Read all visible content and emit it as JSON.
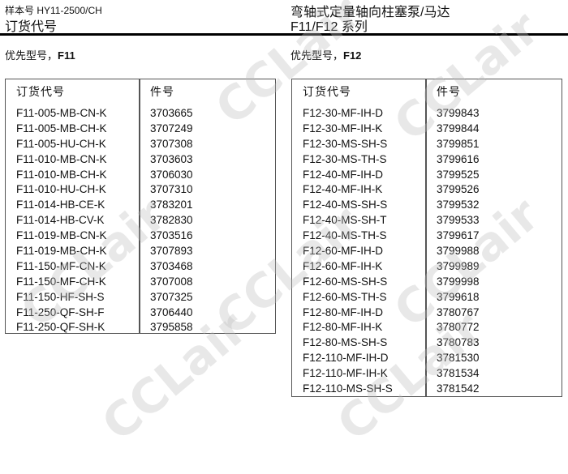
{
  "header": {
    "catalog_no": "样本号 HY11-2500/CH",
    "section": "订货代号",
    "title": "弯轴式定量轴向柱塞泵/马达",
    "series": "F11/F12 系列"
  },
  "watermark": "CCLair",
  "tables": [
    {
      "preferred_label": "优先型号，",
      "preferred_model": "F11",
      "columns": [
        "订货代号",
        "件号"
      ],
      "rows": [
        [
          "F11-005-MB-CN-K",
          "3703665"
        ],
        [
          "F11-005-MB-CH-K",
          "3707249"
        ],
        [
          "F11-005-HU-CH-K",
          "3707308"
        ],
        [
          "F11-010-MB-CN-K",
          "3703603"
        ],
        [
          "F11-010-MB-CH-K",
          "3706030"
        ],
        [
          "F11-010-HU-CH-K",
          "3707310"
        ],
        [
          "F11-014-HB-CE-K",
          "3783201"
        ],
        [
          "F11-014-HB-CV-K",
          "3782830"
        ],
        [
          "F11-019-MB-CN-K",
          "3703516"
        ],
        [
          "F11-019-MB-CH-K",
          "3707893"
        ],
        [
          "F11-150-MF-CN-K",
          "3703468"
        ],
        [
          "F11-150-MF-CH-K",
          "3707008"
        ],
        [
          "F11-150-HF-SH-S",
          "3707325"
        ],
        [
          "F11-250-QF-SH-F",
          "3706440"
        ],
        [
          "F11-250-QF-SH-K",
          "3795858"
        ]
      ]
    },
    {
      "preferred_label": "优先型号，",
      "preferred_model": "F12",
      "columns": [
        "订货代号",
        "件号"
      ],
      "rows": [
        [
          "F12-30-MF-IH-D",
          "3799843"
        ],
        [
          "F12-30-MF-IH-K",
          "3799844"
        ],
        [
          "F12-30-MS-SH-S",
          "3799851"
        ],
        [
          "F12-30-MS-TH-S",
          "3799616"
        ],
        [
          "F12-40-MF-IH-D",
          "3799525"
        ],
        [
          "F12-40-MF-IH-K",
          "3799526"
        ],
        [
          "F12-40-MS-SH-S",
          "3799532"
        ],
        [
          "F12-40-MS-SH-T",
          "3799533"
        ],
        [
          "F12-40-MS-TH-S",
          "3799617"
        ],
        [
          "F12-60-MF-IH-D",
          "3799988"
        ],
        [
          "F12-60-MF-IH-K",
          "3799989"
        ],
        [
          "F12-60-MS-SH-S",
          "3799998"
        ],
        [
          "F12-60-MS-TH-S",
          "3799618"
        ],
        [
          "F12-80-MF-IH-D",
          "3780767"
        ],
        [
          "F12-80-MF-IH-K",
          "3780772"
        ],
        [
          "F12-80-MS-SH-S",
          "3780783"
        ],
        [
          "F12-110-MF-IH-D",
          "3781530"
        ],
        [
          "F12-110-MF-IH-K",
          "3781534"
        ],
        [
          "F12-110-MS-SH-S",
          "3781542"
        ]
      ]
    }
  ]
}
